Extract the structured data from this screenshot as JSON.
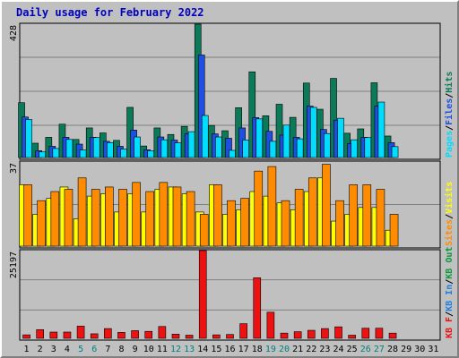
{
  "title": "Daily usage for February 2022",
  "colors": {
    "frame_bg": "#c0c0c0",
    "panel_bg": "#c0c0c0",
    "grid": "#808080",
    "hits": "#0a7a58",
    "files": "#1e4fe0",
    "pages": "#00ddff",
    "visits": "#ffff00",
    "sites": "#ff8c00",
    "kbin": "#1e80e0",
    "kbout": "#0a9a40",
    "kbf": "#ee1111",
    "weekend_label": "#008080",
    "weekday_label": "#000000",
    "title": "#0000c0"
  },
  "chart_data": [
    {
      "type": "bar",
      "title": "Daily usage for February 2022",
      "panel": "hits_files_pages",
      "ymax_label": "428",
      "ylim": [
        0,
        428
      ],
      "legend": [
        {
          "name": "Pages",
          "color": "#00ddff"
        },
        {
          "name": "Files",
          "color": "#1e4fe0"
        },
        {
          "name": "Hits",
          "color": "#0a7a58"
        }
      ],
      "series": [
        {
          "name": "Hits",
          "values": [
            176,
            46,
            65,
            107,
            58,
            95,
            79,
            55,
            161,
            37,
            95,
            74,
            100,
            428,
            103,
            86,
            160,
            275,
            134,
            171,
            129,
            239,
            155,
            254,
            78,
            92,
            240,
            69
          ]
        },
        {
          "name": "Files",
          "values": [
            130,
            22,
            36,
            65,
            43,
            65,
            52,
            36,
            88,
            25,
            66,
            56,
            76,
            329,
            76,
            62,
            95,
            128,
            84,
            72,
            65,
            165,
            90,
            120,
            45,
            65,
            165,
            48
          ]
        },
        {
          "name": "Pages",
          "values": [
            122,
            18,
            29,
            58,
            24,
            64,
            48,
            27,
            66,
            22,
            57,
            47,
            83,
            135,
            66,
            23,
            56,
            124,
            52,
            104,
            60,
            161,
            77,
            126,
            57,
            64,
            178,
            35
          ]
        }
      ]
    },
    {
      "type": "bar",
      "panel": "visits_sites",
      "ymax_label": "37",
      "ylim": [
        0,
        37
      ],
      "legend": [
        {
          "name": "Sites",
          "color": "#ff8c00"
        },
        {
          "name": "Visits",
          "color": "#ffff00"
        }
      ],
      "series": [
        {
          "name": "Visits",
          "values": [
            27,
            14,
            21,
            26,
            12,
            22,
            23,
            15,
            23,
            15,
            25,
            26,
            23,
            15,
            27,
            14,
            16,
            24,
            22,
            19,
            16,
            24,
            30,
            11,
            14,
            17,
            17,
            7
          ]
        },
        {
          "name": "Sites",
          "values": [
            27,
            20,
            24,
            25,
            30,
            25,
            26,
            25,
            28,
            24,
            28,
            26,
            24,
            14,
            27,
            20,
            21,
            33,
            35,
            20,
            25,
            30,
            36,
            20,
            27,
            27,
            25,
            14
          ]
        }
      ]
    },
    {
      "type": "bar",
      "panel": "kbytes",
      "ymax_label": "25197",
      "ylim": [
        0,
        25197
      ],
      "legend": [
        {
          "name": "KB F",
          "color": "#ee1111"
        },
        {
          "name": "KB In",
          "color": "#1e80e0"
        },
        {
          "name": "KB Out",
          "color": "#0a9a40"
        }
      ],
      "series": [
        {
          "name": "KB F",
          "values": [
            1000,
            2500,
            1800,
            1800,
            3500,
            1300,
            2800,
            1700,
            2200,
            2000,
            3400,
            1200,
            900,
            25197,
            1000,
            1100,
            4200,
            17400,
            7500,
            1500,
            1900,
            2300,
            2800,
            3300,
            900,
            2900,
            2900,
            1500
          ]
        }
      ]
    }
  ],
  "days": [
    "1",
    "2",
    "3",
    "4",
    "5",
    "6",
    "7",
    "8",
    "9",
    "10",
    "11",
    "12",
    "13",
    "14",
    "15",
    "16",
    "17",
    "18",
    "19",
    "20",
    "21",
    "22",
    "23",
    "24",
    "25",
    "26",
    "27",
    "28",
    "29",
    "30",
    "31"
  ],
  "weekend_days": [
    5,
    6,
    12,
    13,
    19,
    20,
    26,
    27
  ]
}
